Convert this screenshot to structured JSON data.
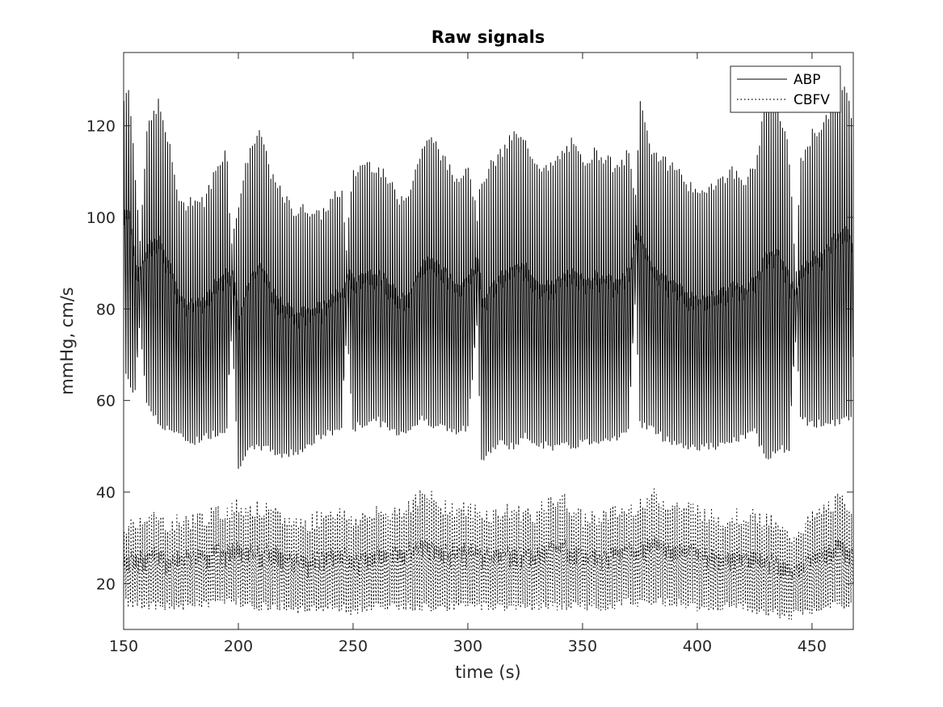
{
  "chart_data": {
    "type": "line",
    "title": "Raw signals",
    "xlabel": "time (s)",
    "ylabel": "mmHg, cm/s",
    "xlim": [
      150,
      468
    ],
    "ylim": [
      10,
      136
    ],
    "xticks": [
      150,
      200,
      250,
      300,
      350,
      400,
      450
    ],
    "yticks": [
      20,
      40,
      60,
      80,
      100,
      120
    ],
    "grid": false,
    "legend_position": "top-right",
    "series": [
      {
        "name": "ABP",
        "style": "solid",
        "color": "#000000",
        "beat_period_s": 1.0,
        "envelope": {
          "t": [
            150,
            152,
            155,
            157,
            160,
            165,
            170,
            175,
            180,
            185,
            190,
            195,
            197,
            200,
            205,
            210,
            215,
            220,
            225,
            230,
            235,
            240,
            245,
            247,
            250,
            255,
            260,
            265,
            270,
            275,
            280,
            285,
            290,
            295,
            300,
            304,
            306,
            310,
            315,
            320,
            325,
            330,
            335,
            340,
            345,
            350,
            355,
            360,
            365,
            370,
            373,
            375,
            380,
            385,
            390,
            395,
            400,
            405,
            410,
            415,
            420,
            425,
            430,
            435,
            440,
            443,
            445,
            450,
            455,
            460,
            465,
            468
          ],
          "systolic": [
            125,
            130,
            110,
            95,
            118,
            125,
            115,
            102,
            104,
            103,
            110,
            115,
            93,
            103,
            115,
            118,
            108,
            104,
            101,
            102,
            100,
            103,
            106,
            93,
            109,
            112,
            111,
            108,
            104,
            106,
            115,
            117,
            112,
            108,
            112,
            100,
            108,
            111,
            114,
            118,
            116,
            112,
            110,
            113,
            116,
            112,
            114,
            113,
            110,
            114,
            103,
            125,
            115,
            112,
            111,
            108,
            104,
            107,
            108,
            110,
            108,
            110,
            126,
            124,
            114,
            87,
            112,
            118,
            120,
            126,
            128,
            118
          ],
          "diastolic": [
            68,
            64,
            62,
            77,
            60,
            55,
            54,
            52,
            51,
            52,
            53,
            54,
            77,
            46,
            49,
            50,
            49,
            48,
            49,
            50,
            52,
            53,
            54,
            77,
            54,
            55,
            56,
            54,
            53,
            54,
            56,
            55,
            54,
            53,
            54,
            77,
            47,
            49,
            51,
            50,
            52,
            51,
            50,
            50,
            50,
            51,
            51,
            52,
            52,
            53,
            86,
            55,
            54,
            52,
            51,
            50,
            50,
            50,
            50,
            51,
            52,
            53,
            48,
            49,
            50,
            75,
            56,
            55,
            55,
            55,
            56,
            57
          ]
        }
      },
      {
        "name": "CBFV",
        "style": "dotted",
        "color": "#000000",
        "beat_period_s": 1.0,
        "envelope": {
          "t": [
            150,
            160,
            170,
            180,
            190,
            200,
            210,
            220,
            230,
            240,
            250,
            260,
            270,
            280,
            290,
            300,
            310,
            320,
            330,
            340,
            350,
            360,
            370,
            380,
            390,
            400,
            410,
            420,
            430,
            440,
            450,
            460,
            468
          ],
          "systolic": [
            32,
            35,
            33,
            34,
            35,
            37,
            36,
            34,
            33,
            36,
            34,
            35,
            36,
            39,
            37,
            36,
            35,
            36,
            35,
            39,
            34,
            35,
            36,
            39,
            37,
            36,
            34,
            35,
            34,
            30,
            34,
            38,
            37
          ],
          "diastolic": [
            16,
            15,
            15,
            15,
            16,
            16,
            15,
            15,
            14,
            15,
            14,
            15,
            15,
            15,
            15,
            15,
            15,
            15,
            15,
            15,
            15,
            15,
            16,
            16,
            16,
            15,
            15,
            15,
            14,
            13,
            14,
            15,
            15
          ]
        }
      }
    ]
  }
}
